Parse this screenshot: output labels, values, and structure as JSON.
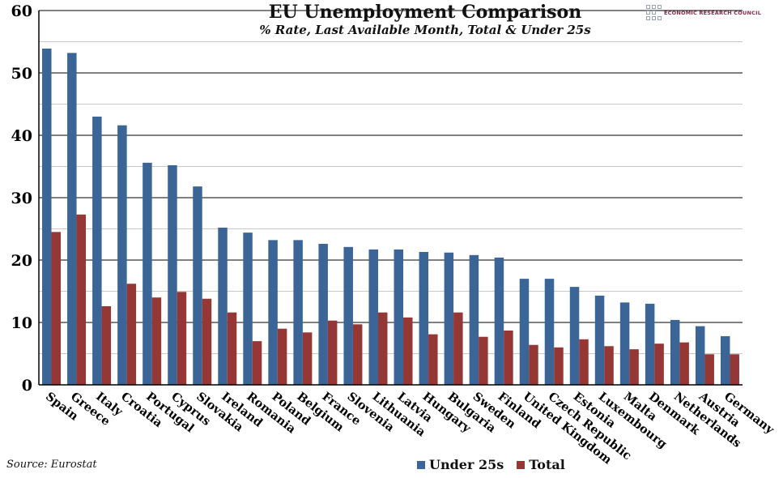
{
  "header": {
    "title": "EU Unemployment Comparison",
    "subtitle": "% Rate, Last Available Month, Total & Under 25s",
    "logo_text": "ECONOMIC RESEARCH COUNCIL"
  },
  "source": "Source: Eurostat",
  "chart_data": {
    "type": "bar",
    "title": "EU Unemployment Comparison",
    "subtitle": "% Rate, Last Available Month, Total & Under 25s",
    "xlabel": "",
    "ylabel": "",
    "ylim": [
      0,
      60
    ],
    "yticks": [
      0,
      10,
      20,
      30,
      40,
      50,
      60
    ],
    "grid": true,
    "legend_position": "bottom",
    "categories": [
      "Spain",
      "Greece",
      "Italy",
      "Croatia",
      "Portugal",
      "Cyprus",
      "Slovakia",
      "Ireland",
      "Romania",
      "Poland",
      "Belgium",
      "France",
      "Slovenia",
      "Lithuania",
      "Latvia",
      "Hungary",
      "Bulgaria",
      "Sweden",
      "Finland",
      "United Kingdom",
      "Czech Republic",
      "Estonia",
      "Luxembourg",
      "Malta",
      "Denmark",
      "Netherlands",
      "Austria",
      "Germany"
    ],
    "series": [
      {
        "name": "Under 25s",
        "color": "#3a6596",
        "values": [
          53.9,
          53.2,
          43.0,
          41.6,
          35.6,
          35.2,
          31.8,
          25.2,
          24.4,
          23.2,
          23.2,
          22.6,
          22.1,
          21.7,
          21.7,
          21.3,
          21.2,
          20.8,
          20.4,
          17.0,
          17.0,
          15.7,
          14.3,
          13.2,
          13.0,
          10.4,
          9.4,
          7.8
        ]
      },
      {
        "name": "Total",
        "color": "#953735",
        "values": [
          24.5,
          27.3,
          12.6,
          16.2,
          14.0,
          14.9,
          13.8,
          11.6,
          7.0,
          9.0,
          8.4,
          10.3,
          9.7,
          11.6,
          10.8,
          8.1,
          11.6,
          7.7,
          8.7,
          6.4,
          6.0,
          7.3,
          6.2,
          5.7,
          6.6,
          6.8,
          4.9,
          4.9
        ]
      }
    ]
  }
}
